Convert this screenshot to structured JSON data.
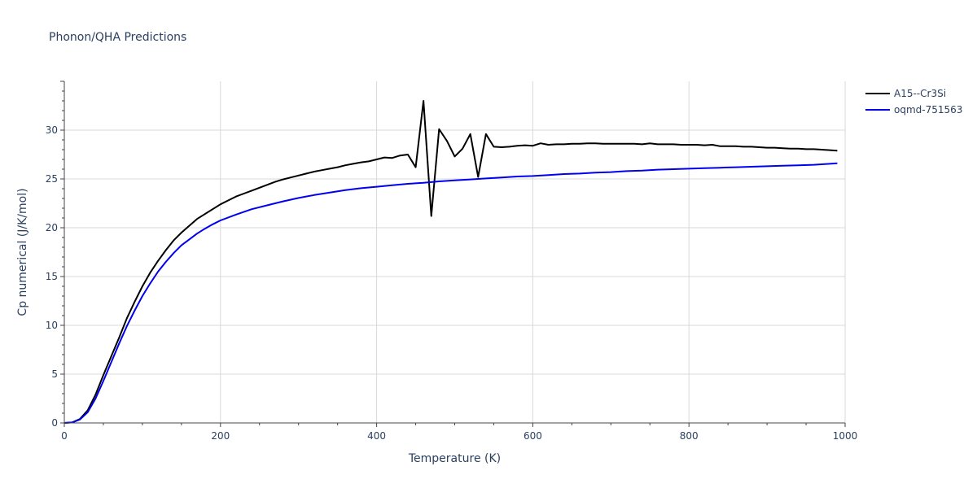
{
  "chart_data": {
    "type": "line",
    "title": "Phonon/QHA Predictions",
    "xlabel": "Temperature (K)",
    "ylabel": "Cp numerical (J/K/mol)",
    "xlim": [
      0,
      1000
    ],
    "ylim": [
      0,
      35
    ],
    "xticks": [
      0,
      200,
      400,
      600,
      800,
      1000
    ],
    "yticks": [
      0,
      5,
      10,
      15,
      20,
      25,
      30
    ],
    "xtick_labels": [
      "0",
      "200",
      "400",
      "600",
      "800",
      "1000"
    ],
    "ytick_labels": [
      "0",
      "5",
      "10",
      "15",
      "20",
      "25",
      "30"
    ],
    "grid": true,
    "legend_position": "top-right",
    "series": [
      {
        "name": "A15--Cr3Si",
        "color": "#000000",
        "x": [
          0,
          10,
          20,
          30,
          40,
          50,
          60,
          70,
          80,
          90,
          100,
          110,
          120,
          130,
          140,
          150,
          160,
          170,
          180,
          190,
          200,
          210,
          220,
          230,
          240,
          250,
          260,
          270,
          280,
          290,
          300,
          310,
          320,
          330,
          340,
          350,
          360,
          370,
          380,
          390,
          400,
          410,
          420,
          430,
          440,
          450,
          460,
          470,
          480,
          490,
          500,
          510,
          520,
          530,
          540,
          550,
          560,
          570,
          580,
          590,
          600,
          610,
          620,
          630,
          640,
          650,
          660,
          670,
          680,
          690,
          700,
          710,
          720,
          730,
          740,
          750,
          760,
          770,
          780,
          790,
          800,
          810,
          820,
          830,
          840,
          850,
          860,
          870,
          880,
          890,
          900,
          910,
          920,
          930,
          940,
          950,
          960,
          970,
          980,
          990
        ],
        "y": [
          0,
          0.05,
          0.4,
          1.3,
          2.9,
          4.9,
          6.8,
          8.7,
          10.7,
          12.4,
          14.0,
          15.4,
          16.6,
          17.7,
          18.7,
          19.5,
          20.2,
          20.9,
          21.4,
          21.9,
          22.4,
          22.8,
          23.2,
          23.5,
          23.8,
          24.1,
          24.4,
          24.7,
          24.95,
          25.15,
          25.35,
          25.55,
          25.75,
          25.9,
          26.05,
          26.2,
          26.4,
          26.55,
          26.7,
          26.8,
          27.0,
          27.2,
          27.15,
          27.4,
          27.5,
          26.2,
          33.0,
          21.2,
          30.1,
          28.9,
          27.3,
          28.1,
          29.6,
          25.2,
          29.6,
          28.3,
          28.25,
          28.3,
          28.4,
          28.45,
          28.4,
          28.65,
          28.5,
          28.55,
          28.55,
          28.6,
          28.6,
          28.65,
          28.65,
          28.6,
          28.6,
          28.6,
          28.6,
          28.6,
          28.55,
          28.65,
          28.55,
          28.55,
          28.55,
          28.5,
          28.5,
          28.5,
          28.45,
          28.5,
          28.35,
          28.35,
          28.35,
          28.3,
          28.3,
          28.25,
          28.2,
          28.2,
          28.15,
          28.1,
          28.1,
          28.05,
          28.05,
          28.0,
          27.95,
          27.9
        ]
      },
      {
        "name": "oqmd-751563",
        "color": "#0000ee",
        "x": [
          0,
          10,
          20,
          30,
          40,
          50,
          60,
          70,
          80,
          90,
          100,
          110,
          120,
          130,
          140,
          150,
          160,
          170,
          180,
          190,
          200,
          220,
          240,
          260,
          280,
          300,
          320,
          340,
          360,
          380,
          400,
          420,
          440,
          460,
          480,
          500,
          520,
          540,
          560,
          580,
          600,
          620,
          640,
          660,
          680,
          700,
          720,
          740,
          760,
          780,
          800,
          820,
          840,
          860,
          880,
          900,
          920,
          940,
          960,
          980,
          990
        ],
        "y": [
          0,
          0.05,
          0.35,
          1.1,
          2.5,
          4.3,
          6.2,
          8.1,
          9.9,
          11.5,
          13.0,
          14.3,
          15.5,
          16.5,
          17.4,
          18.2,
          18.8,
          19.4,
          19.9,
          20.35,
          20.75,
          21.35,
          21.9,
          22.3,
          22.7,
          23.05,
          23.35,
          23.6,
          23.85,
          24.05,
          24.2,
          24.35,
          24.5,
          24.6,
          24.75,
          24.85,
          24.95,
          25.05,
          25.15,
          25.25,
          25.3,
          25.4,
          25.5,
          25.55,
          25.65,
          25.7,
          25.8,
          25.85,
          25.95,
          26.0,
          26.05,
          26.1,
          26.15,
          26.2,
          26.25,
          26.3,
          26.35,
          26.4,
          26.45,
          26.55,
          26.6
        ]
      }
    ]
  }
}
